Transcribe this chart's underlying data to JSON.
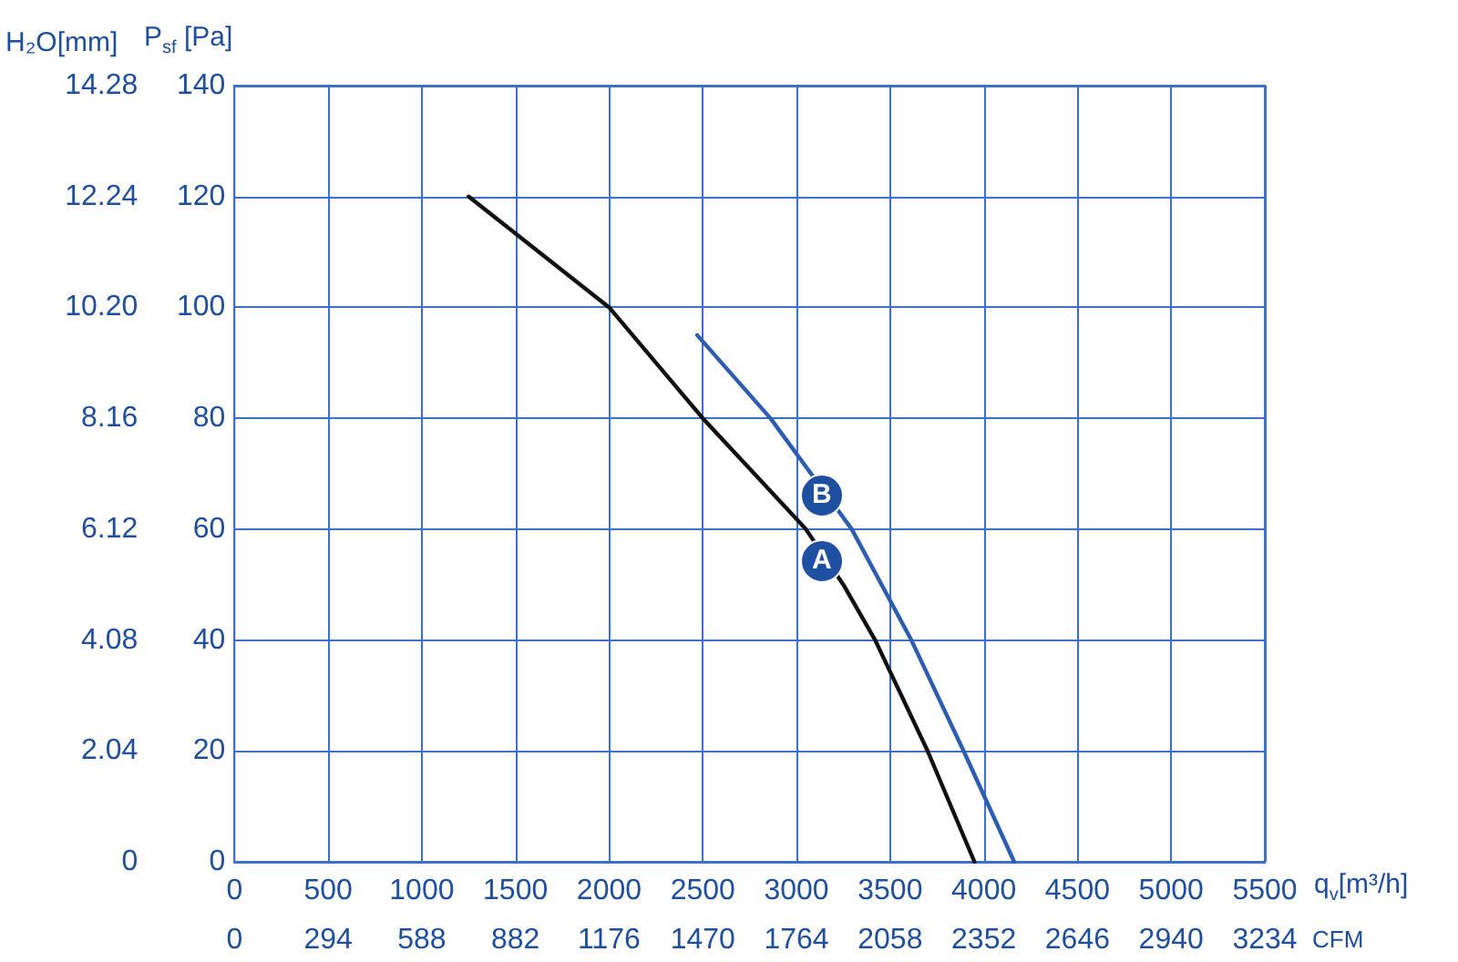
{
  "chart_data": {
    "type": "line",
    "xlabel": "q$_{v}$[m³/h]",
    "ylabel": "P$_{sf}$ [Pa]",
    "y2label": "H₂O[mm]",
    "x2label": "CFM",
    "xlim": [
      0,
      5500
    ],
    "xticks": [
      0,
      500,
      1000,
      1500,
      2000,
      2500,
      3000,
      3500,
      4000,
      4500,
      5000,
      5500
    ],
    "x2lim": [
      0,
      3234
    ],
    "x2ticks": [
      0,
      294,
      588,
      882,
      1176,
      1470,
      1764,
      2058,
      2352,
      2646,
      2940,
      3234
    ],
    "ylim": [
      0,
      140
    ],
    "yticks": [
      0,
      20,
      40,
      60,
      80,
      100,
      120,
      140
    ],
    "y2lim": [
      0,
      14.28
    ],
    "y2ticks": [
      0,
      {
        "value": 2.04,
        "label": "2.04"
      },
      {
        "value": 4.08,
        "label": "4.08"
      },
      {
        "value": 6.12,
        "label": "6.12"
      },
      {
        "value": 8.16,
        "label": "8.16"
      },
      {
        "value": 10.2,
        "label": "10.20"
      },
      {
        "value": 12.24,
        "label": "12.24"
      },
      {
        "value": 14.28,
        "label": "14.28"
      }
    ],
    "series": [
      {
        "color": "#111111",
        "x": [
          1250,
          2000,
          2500,
          3050,
          3250,
          3420,
          3700,
          3950
        ],
        "values": [
          120,
          100,
          80,
          60,
          50,
          40,
          20,
          0
        ]
      },
      {
        "color": "#2d5db0",
        "x": [
          2470,
          2861,
          3295,
          3613,
          3892,
          4162
        ],
        "values": [
          95,
          80,
          60,
          40,
          20,
          0
        ]
      }
    ],
    "annotations": [
      {
        "text": "A",
        "x": 3140,
        "y": 54
      },
      {
        "text": "B",
        "x": 3140,
        "y": 66
      }
    ],
    "grid": true,
    "marker": "none",
    "line_style": "solid"
  }
}
